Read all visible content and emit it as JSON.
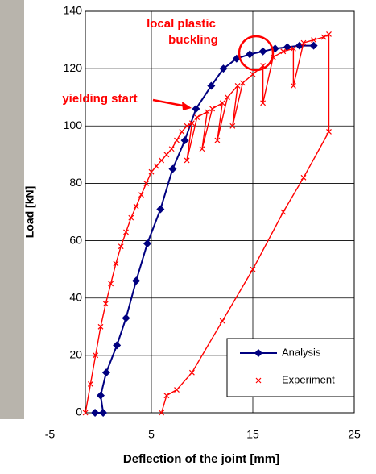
{
  "chart_data": {
    "type": "line",
    "x_label": "Deflection of the joint [mm]",
    "y_label": "Load [kN]",
    "xlim": [
      -5,
      25
    ],
    "xticks": [
      -5,
      5,
      15,
      25
    ],
    "ylim": [
      0,
      140
    ],
    "yticks": [
      0,
      20,
      40,
      60,
      80,
      100,
      120,
      140
    ],
    "grid": true,
    "legend": "lower right",
    "annotations": [
      "local plastic buckling",
      "yielding start"
    ],
    "series": [
      {
        "name": "Analysis",
        "color": "#000080",
        "marker": "diamond",
        "x": [
          -0.55,
          0.25,
          0,
          0.55,
          1.6,
          2.5,
          3.5,
          4.6,
          5.9,
          7.1,
          8.3,
          9.4,
          10.9,
          12.1,
          13.4,
          14.7,
          16,
          17.2,
          18.4,
          19.6,
          21
        ],
        "values": [
          0,
          0,
          6,
          14,
          23.5,
          33,
          46,
          59,
          71,
          85,
          95,
          106,
          114,
          120,
          123.5,
          125,
          126,
          127,
          127.5,
          128,
          128
        ]
      },
      {
        "name": "Experiment",
        "color": "#ff0000",
        "marker": "x",
        "x": [
          -1.5,
          -1,
          -0.5,
          0,
          0.5,
          1,
          1.5,
          2,
          2.5,
          3,
          3.5,
          4,
          4.5,
          5,
          5.5,
          6,
          6.5,
          7,
          7.5,
          8,
          8.5,
          9,
          8.5,
          9.5,
          10.5,
          10,
          11,
          12,
          11.5,
          12.5,
          13.5,
          13,
          14,
          15,
          16,
          16,
          17,
          18,
          19,
          19,
          20,
          21,
          22,
          22.5,
          22.5,
          20,
          18,
          15,
          12,
          9,
          7.5,
          6.5,
          6
        ],
        "values": [
          0,
          10,
          20,
          30,
          38,
          45,
          52,
          58,
          63,
          68,
          72,
          76,
          80,
          84,
          86,
          88,
          90,
          92,
          95,
          98,
          100,
          101,
          88,
          103,
          105,
          92,
          106,
          108,
          95,
          110,
          114,
          100,
          115,
          118,
          121,
          108,
          124,
          126,
          127,
          114,
          129,
          130,
          131,
          132,
          98,
          82,
          70,
          50,
          32,
          14,
          8,
          6,
          0
        ]
      }
    ]
  }
}
